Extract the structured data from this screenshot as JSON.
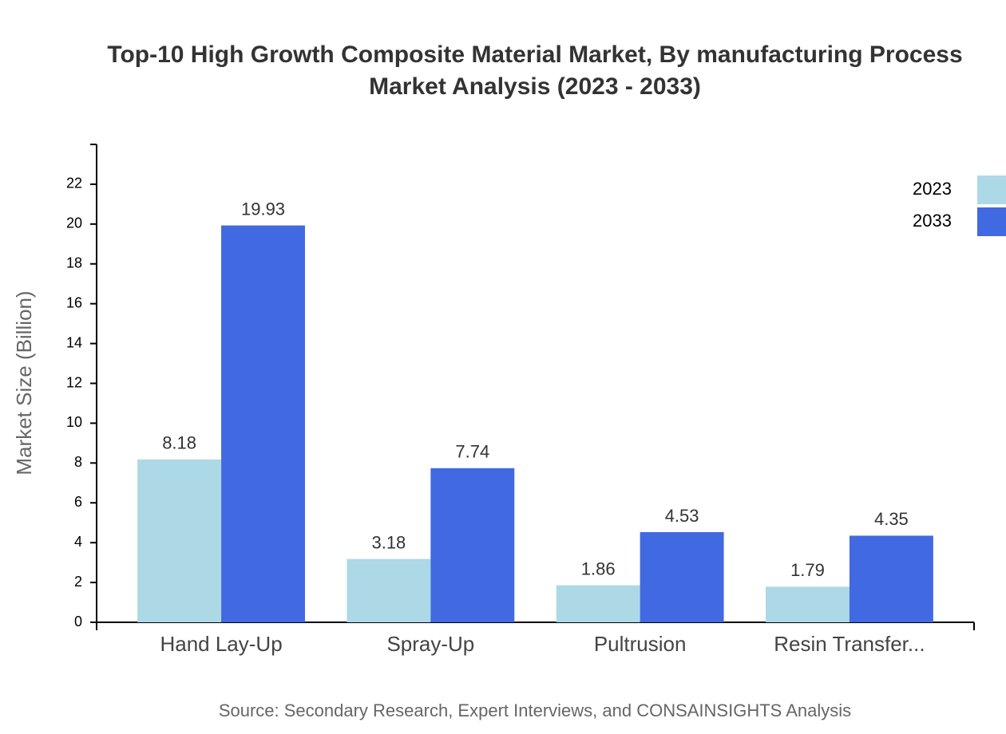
{
  "chart_data": {
    "type": "bar",
    "title": "Top-10 High Growth Composite Material Market, By manufacturing Process",
    "subtitle": "Market Analysis (2023 - 2033)",
    "y_label": "Market Size (Billion)",
    "source": "Source: Secondary Research, Expert Interviews, and CONSAINSIGHTS Analysis",
    "categories": [
      "Hand Lay-Up",
      "Spray-Up",
      "Pultrusion",
      "Resin Transfer..."
    ],
    "series": [
      {
        "name": "2023",
        "color": "#add8e6",
        "values": [
          8.18,
          3.18,
          1.86,
          1.79
        ]
      },
      {
        "name": "2033",
        "color": "#4169e1",
        "values": [
          19.93,
          7.74,
          4.53,
          4.35
        ]
      }
    ],
    "ylim": [
      0,
      24
    ],
    "yticks": [
      0,
      2,
      4,
      6,
      8,
      10,
      12,
      14,
      16,
      18,
      20,
      22
    ],
    "legend": "top-right"
  }
}
